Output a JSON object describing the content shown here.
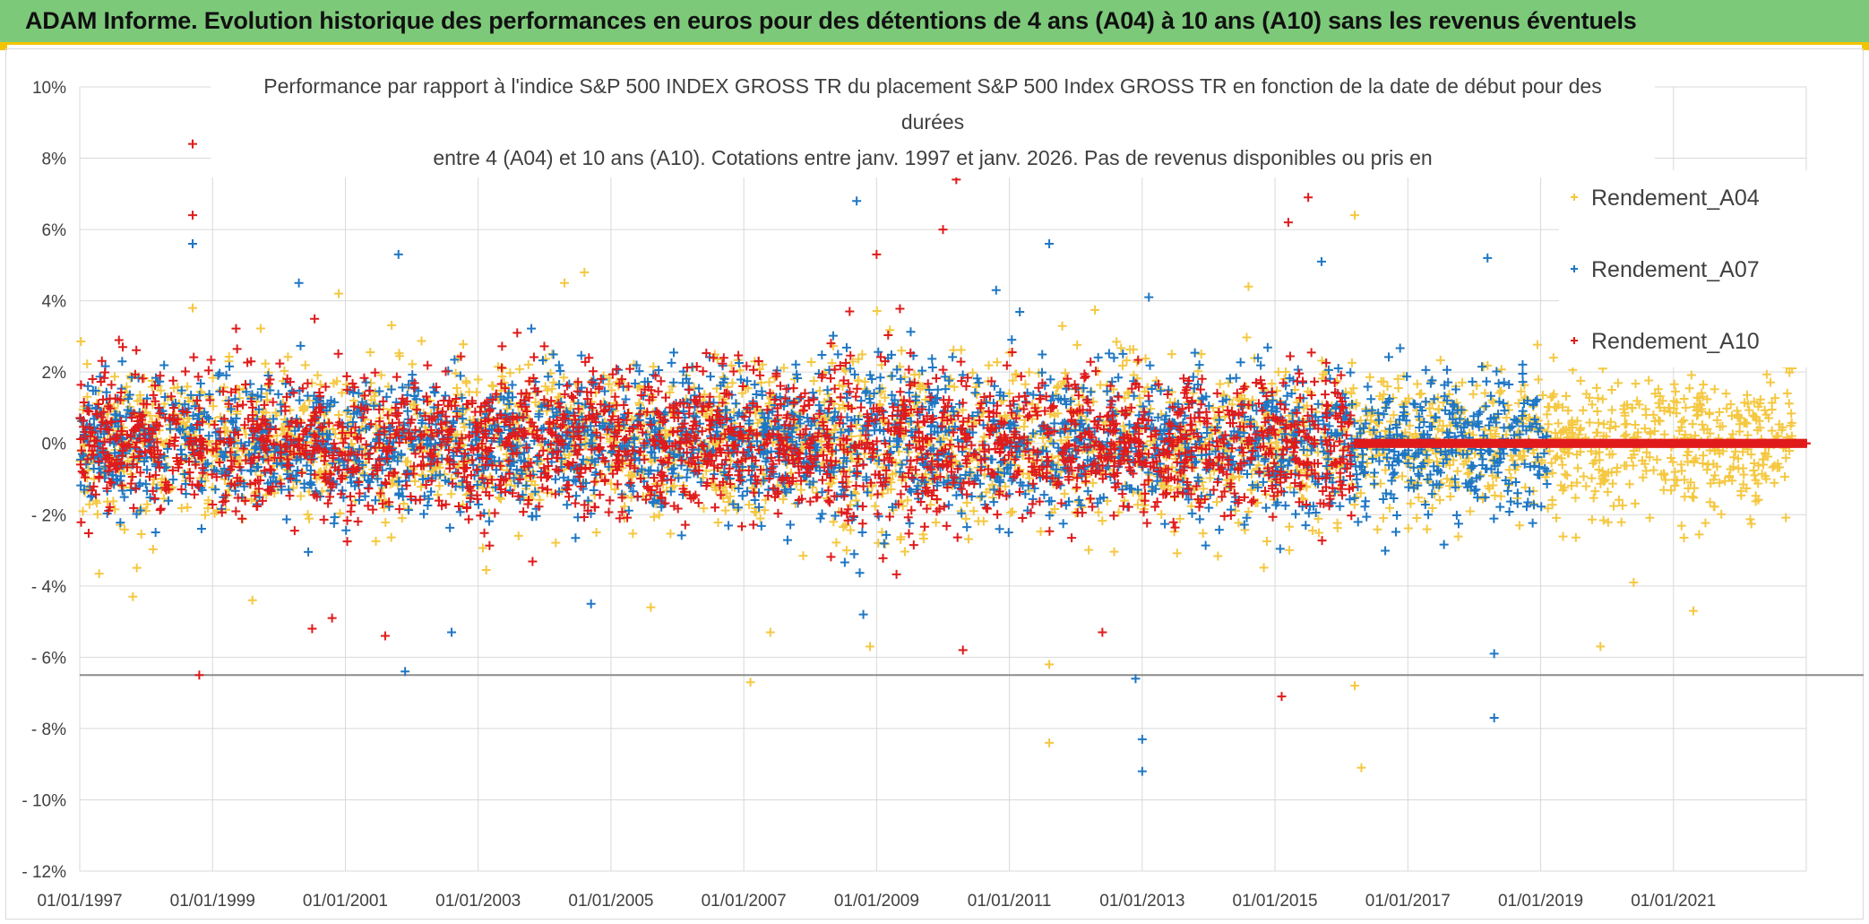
{
  "banner": {
    "title": "ADAM Informe. Evolution historique des performances en euros pour des détentions de 4 ans (A04) à 10 ans (A10) sans les revenus éventuels"
  },
  "chart_data": {
    "type": "scatter",
    "title_lines": [
      "Performance  par rapport à l'indice S&P 500 INDEX GROSS TR  du placement S&P 500 Index GROSS TR en fonction de la date de début pour des",
      "durées",
      "entre 4 (A04) et 10 ans (A10). Cotations entre janv. 1997 et janv. 2026. Pas de revenus disponibles ou pris en"
    ],
    "xlabel": "",
    "ylabel": "",
    "x_range": [
      "1997-01-01",
      "2023-01-01"
    ],
    "x_ticks": [
      "01/01/1997",
      "01/01/1999",
      "01/01/2001",
      "01/01/2003",
      "01/01/2005",
      "01/01/2007",
      "01/01/2009",
      "01/01/2011",
      "01/01/2013",
      "01/01/2015",
      "01/01/2017",
      "01/01/2019",
      "01/01/2021"
    ],
    "x_tick_years": [
      1997,
      1999,
      2001,
      2003,
      2005,
      2007,
      2009,
      2011,
      2013,
      2015,
      2017,
      2019,
      2021
    ],
    "ylim": [
      -12,
      10
    ],
    "y_ticks": [
      -12,
      -10,
      -8,
      -6,
      -4,
      -2,
      0,
      2,
      4,
      6,
      8,
      10
    ],
    "y_tick_labels": [
      "- 12%",
      "- 10%",
      "- 8%",
      "- 6%",
      "- 4%",
      "- 2%",
      "0%",
      "2%",
      "4%",
      "6%",
      "8%",
      "10%"
    ],
    "reference_line_y": -6.5,
    "grid": true,
    "legend_position": "top-right",
    "marker": "+",
    "series": [
      {
        "name": "Rendement_A04",
        "color": "#f5c842",
        "data_years": [
          1997,
          2022.8
        ],
        "base_spread_pct": 1.4,
        "outliers": [
          [
            1997.8,
            -4.3
          ],
          [
            1998.7,
            3.8
          ],
          [
            1999.6,
            -4.4
          ],
          [
            2000.9,
            4.2
          ],
          [
            2004.3,
            4.5
          ],
          [
            2004.6,
            4.8
          ],
          [
            2005.6,
            -4.6
          ],
          [
            2007.1,
            -6.7
          ],
          [
            2007.4,
            -5.3
          ],
          [
            2008.9,
            -5.7
          ],
          [
            2011.6,
            -8.4
          ],
          [
            2011.6,
            -6.2
          ],
          [
            2014.6,
            4.4
          ],
          [
            2016.3,
            -9.1
          ],
          [
            2016.2,
            6.4
          ],
          [
            2016.2,
            -6.8
          ],
          [
            2019.9,
            -5.7
          ],
          [
            2020.4,
            -3.9
          ],
          [
            2021.3,
            -4.7
          ]
        ]
      },
      {
        "name": "Rendement_A07",
        "color": "#1f77c4",
        "data_years": [
          1997,
          2019.1
        ],
        "base_spread_pct": 1.3,
        "outliers": [
          [
            1998.7,
            5.6
          ],
          [
            2000.3,
            4.5
          ],
          [
            2001.8,
            5.3
          ],
          [
            2001.9,
            -6.4
          ],
          [
            2002.6,
            -5.3
          ],
          [
            2004.7,
            -4.5
          ],
          [
            2008.7,
            6.8
          ],
          [
            2008.8,
            -4.8
          ],
          [
            2010.8,
            4.3
          ],
          [
            2011.6,
            5.6
          ],
          [
            2012.9,
            -6.6
          ],
          [
            2013.0,
            -8.3
          ],
          [
            2013.0,
            -9.2
          ],
          [
            2013.1,
            4.1
          ],
          [
            2015.7,
            5.1
          ],
          [
            2018.2,
            5.2
          ],
          [
            2018.3,
            -7.7
          ],
          [
            2018.3,
            -5.9
          ]
        ]
      },
      {
        "name": "Rendement_A10",
        "color": "#e01b1b",
        "data_years": [
          1997,
          2016.2
        ],
        "base_spread_pct": 1.3,
        "outliers": [
          [
            1998.7,
            8.4
          ],
          [
            1998.7,
            6.4
          ],
          [
            1998.8,
            -6.5
          ],
          [
            2000.5,
            -5.2
          ],
          [
            2000.8,
            -4.9
          ],
          [
            2001.6,
            -5.4
          ],
          [
            2009.0,
            5.3
          ],
          [
            2010.0,
            6.0
          ],
          [
            2010.2,
            7.4
          ],
          [
            2010.3,
            -5.8
          ],
          [
            2012.4,
            -5.3
          ],
          [
            2015.1,
            -7.1
          ],
          [
            2015.2,
            6.2
          ],
          [
            2015.5,
            6.9
          ]
        ],
        "flat_after_year": 2016.2,
        "flat_until_year": 2023.0,
        "flat_value": 0
      }
    ]
  }
}
